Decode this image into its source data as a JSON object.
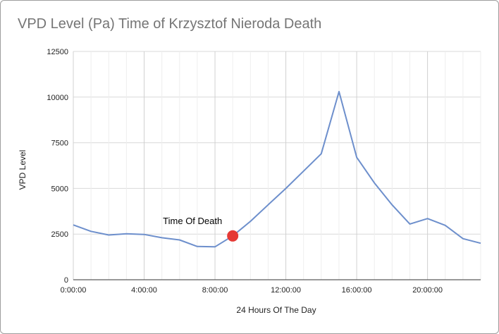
{
  "chart_data": {
    "type": "line",
    "title": "VPD Level (Pa) Time of Krzysztof Nieroda Death",
    "xlabel": "24 Hours Of The Day",
    "ylabel": "VPD Level",
    "ylim": [
      0,
      12500
    ],
    "xlim": [
      0,
      23
    ],
    "yticks": [
      0,
      2500,
      5000,
      7500,
      10000,
      12500
    ],
    "yticklabels": [
      "0",
      "2500",
      "5000",
      "7500",
      "10000",
      "12500"
    ],
    "xticks": [
      0,
      4,
      8,
      12,
      16,
      20
    ],
    "xticklabels": [
      "0:00:00",
      "4:00:00",
      "8:00:00",
      "12:00:00",
      "16:00:00",
      "20:00:00"
    ],
    "grid": true,
    "legend": "none",
    "series": [
      {
        "color": "#6d8fcc",
        "x": [
          0,
          1,
          2,
          3,
          4,
          5,
          6,
          7,
          8,
          9,
          10,
          11,
          12,
          13,
          14,
          15,
          16,
          17,
          18,
          19,
          20,
          21,
          22,
          23
        ],
        "values": [
          3000,
          2650,
          2450,
          2520,
          2480,
          2300,
          2180,
          1820,
          1800,
          2400,
          3200,
          4100,
          5000,
          5950,
          6900,
          10300,
          6700,
          5300,
          4100,
          3050,
          3350,
          2980,
          2250,
          2000
        ]
      }
    ],
    "annotations": [
      {
        "text": "Time Of Death",
        "x": 9,
        "y": 2400,
        "marker_color": "#e53935"
      }
    ]
  }
}
